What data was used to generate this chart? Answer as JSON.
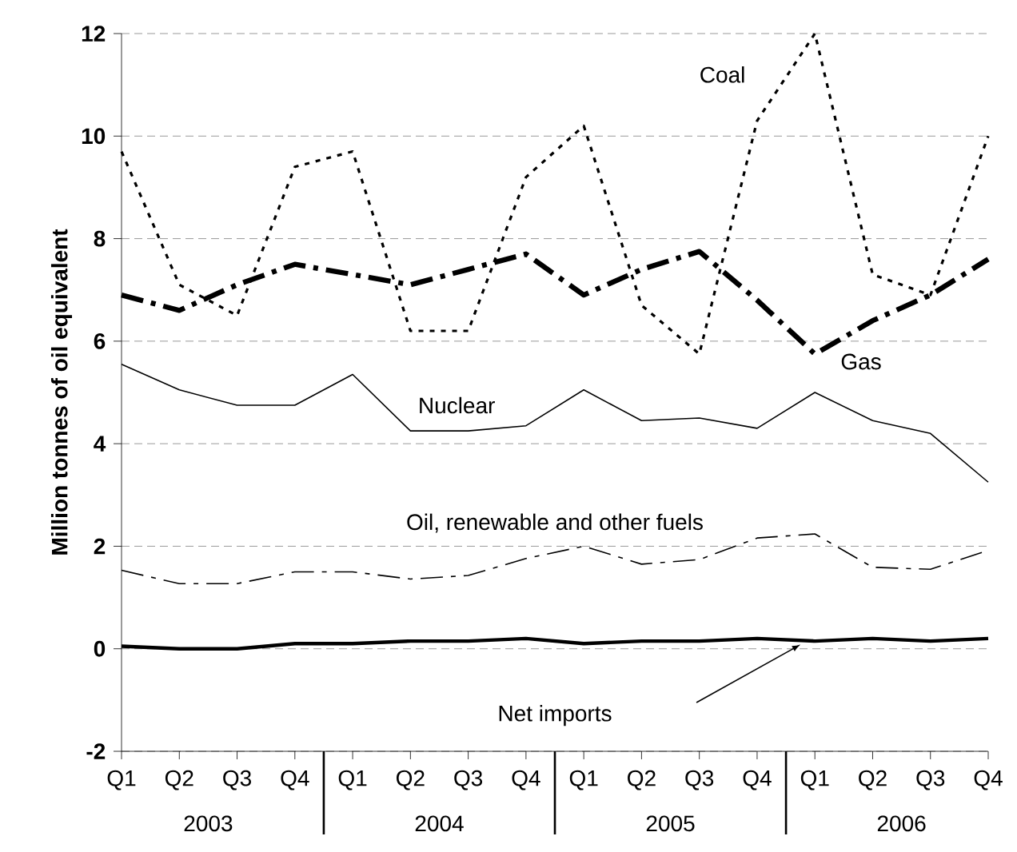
{
  "chart_data": {
    "type": "line",
    "ylabel": "Million tonnes of oil equivalent",
    "categories": [
      "Q1",
      "Q2",
      "Q3",
      "Q4",
      "Q1",
      "Q2",
      "Q3",
      "Q4",
      "Q1",
      "Q2",
      "Q3",
      "Q4",
      "Q1",
      "Q2",
      "Q3",
      "Q4"
    ],
    "annotations": [
      "2003",
      "2004",
      "2005",
      "2006"
    ],
    "series": [
      {
        "name": "Coal",
        "color": "#000000",
        "line_style": "dotted",
        "values": [
          9.7,
          7.1,
          6.5,
          9.4,
          9.7,
          6.2,
          6.2,
          9.2,
          10.2,
          6.7,
          5.75,
          10.3,
          12.0,
          7.3,
          6.9,
          10.0
        ]
      },
      {
        "name": "Gas",
        "color": "#000000",
        "line_style": "dashdot",
        "values": [
          6.9,
          6.6,
          7.1,
          7.5,
          7.3,
          7.1,
          7.4,
          7.7,
          6.9,
          7.4,
          7.75,
          6.8,
          5.75,
          6.4,
          6.9,
          7.6
        ]
      },
      {
        "name": "Nuclear",
        "color": "#000000",
        "line_style": "solid",
        "values": [
          5.55,
          5.05,
          4.75,
          4.75,
          5.35,
          4.25,
          4.25,
          4.35,
          5.05,
          4.45,
          4.5,
          4.3,
          5.0,
          4.45,
          4.2,
          3.25
        ]
      },
      {
        "name": "Oil, renewable and other fuels",
        "color": "#000000",
        "line_style": "dashdot",
        "values": [
          1.53,
          1.27,
          1.27,
          1.5,
          1.5,
          1.36,
          1.43,
          1.76,
          2.0,
          1.65,
          1.74,
          2.16,
          2.24,
          1.59,
          1.55,
          1.92
        ]
      },
      {
        "name": "Net imports",
        "color": "#000000",
        "line_style": "solid",
        "values": [
          0.05,
          0.0,
          0.0,
          0.1,
          0.1,
          0.15,
          0.15,
          0.2,
          0.1,
          0.15,
          0.15,
          0.2,
          0.15,
          0.2,
          0.15,
          0.2
        ]
      }
    ],
    "ylim": [
      -2,
      12
    ],
    "yticks": [
      -2,
      0,
      2,
      4,
      6,
      8,
      10,
      12
    ],
    "grid": "y",
    "marker": "none"
  }
}
